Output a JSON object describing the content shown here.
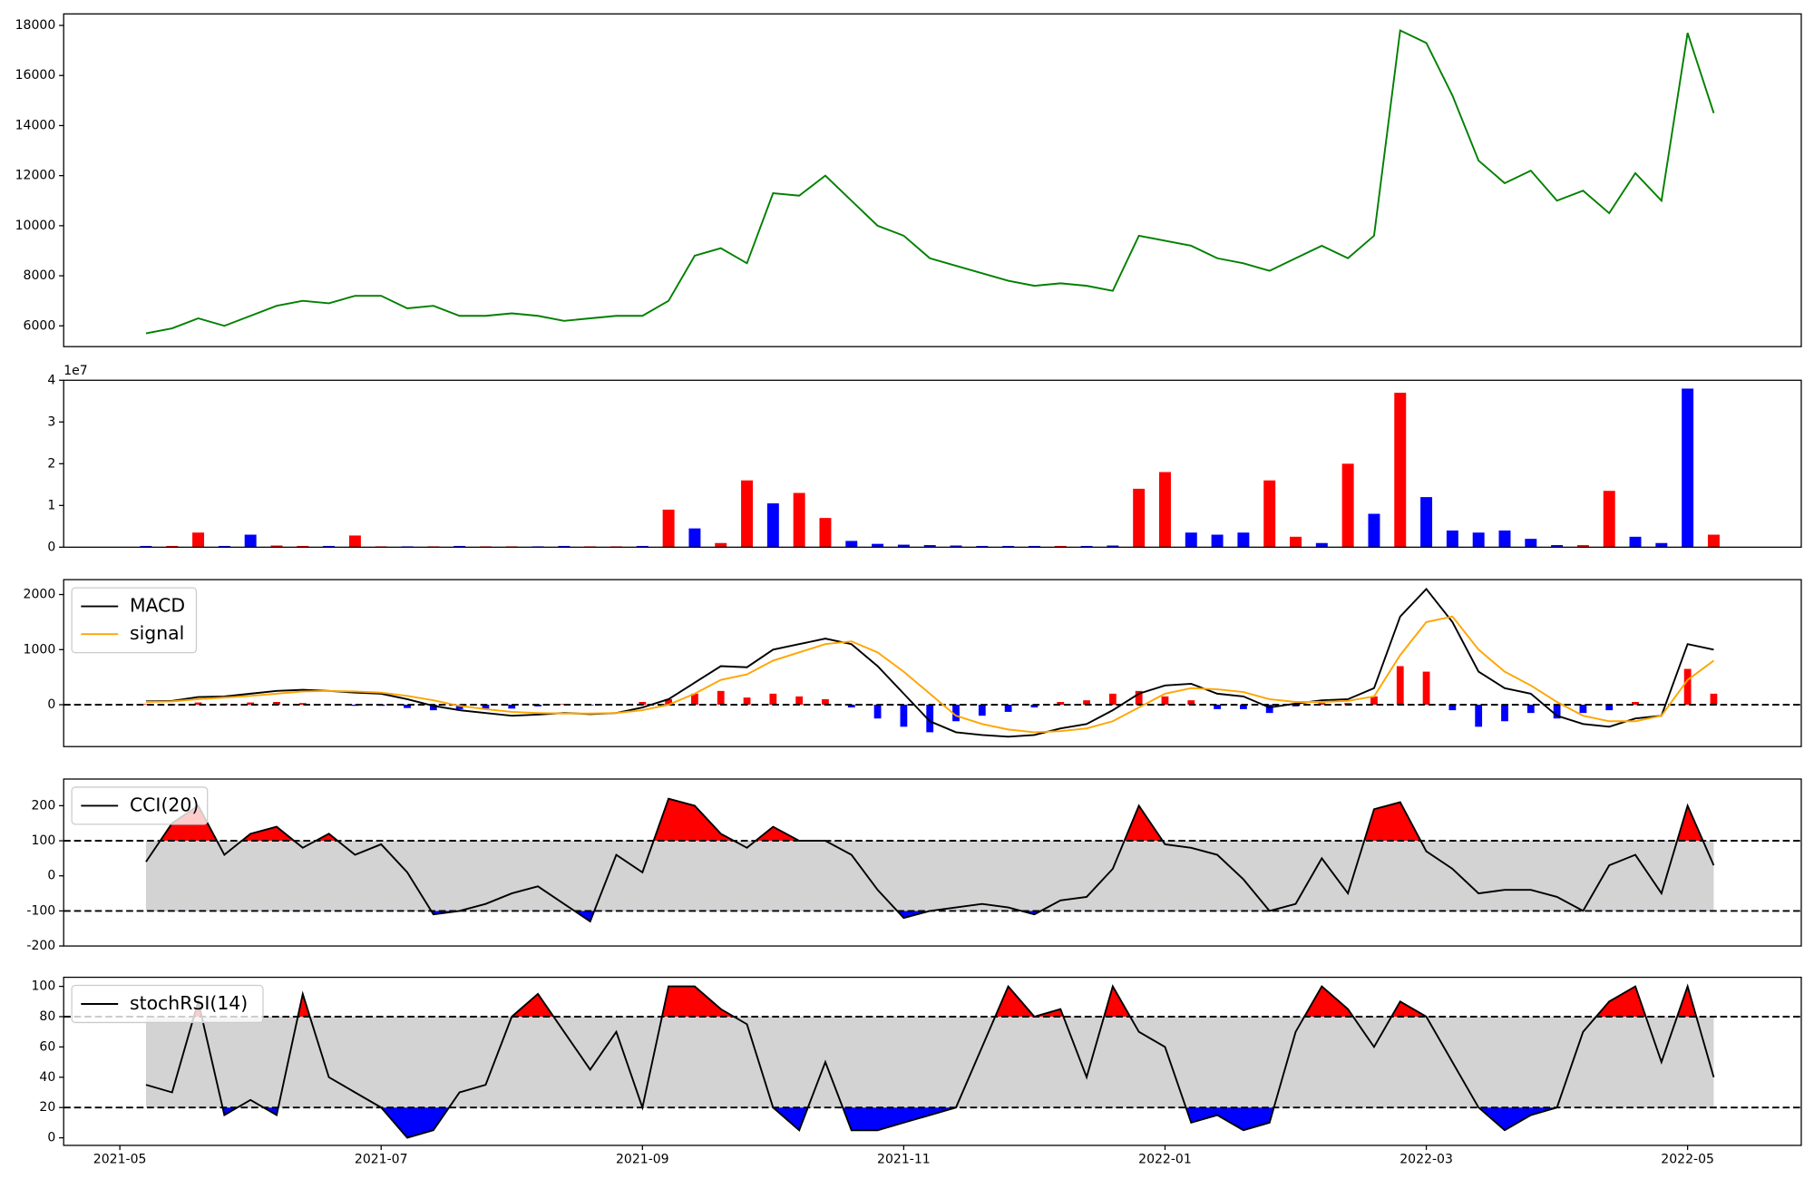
{
  "chart_data": {
    "type": "panels",
    "x": [
      5.2,
      5.4,
      5.6,
      5.8,
      6,
      6.2,
      6.4,
      6.6,
      6.8,
      7,
      7.2,
      7.4,
      7.6,
      7.8,
      8,
      8.2,
      8.4,
      8.6,
      8.8,
      9,
      9.2,
      9.4,
      9.6,
      9.8,
      10,
      10.2,
      10.4,
      10.6,
      10.8,
      11,
      11.2,
      11.4,
      11.6,
      11.8,
      12,
      12.2,
      12.4,
      12.6,
      12.8,
      13,
      13.2,
      13.4,
      13.6,
      13.8,
      14,
      14.2,
      14.4,
      14.6,
      14.8,
      15,
      15.2,
      15.4,
      15.6,
      15.8,
      16,
      16.2,
      16.4,
      16.6,
      16.8,
      17,
      17.2
    ],
    "xlim": [
      4.57,
      17.87
    ],
    "xticks": [
      {
        "value": 5,
        "label": "2021-05"
      },
      {
        "value": 7,
        "label": "2021-07"
      },
      {
        "value": 9,
        "label": "2021-09"
      },
      {
        "value": 11,
        "label": "2021-11"
      },
      {
        "value": 13,
        "label": "2022-01"
      },
      {
        "value": 15,
        "label": "2022-03"
      },
      {
        "value": 17,
        "label": "2022-05"
      }
    ],
    "panels": [
      {
        "type": "line",
        "ylim": [
          5170,
          18460
        ],
        "yticks": [
          6000,
          8000,
          10000,
          12000,
          14000,
          16000,
          18000
        ],
        "series": [
          {
            "color": "green",
            "values": [
              5700,
              5900,
              6300,
              6000,
              6400,
              6800,
              7000,
              6900,
              7200,
              7200,
              6700,
              6800,
              6400,
              6400,
              6500,
              6400,
              6200,
              6300,
              6400,
              6400,
              7000,
              8800,
              9100,
              8500,
              11300,
              11200,
              12000,
              11000,
              10000,
              9600,
              8700,
              8400,
              8100,
              7800,
              7600,
              7700,
              7600,
              7400,
              9600,
              9400,
              9200,
              8700,
              8500,
              8200,
              8700,
              9200,
              8700,
              9600,
              17800,
              17300,
              15200,
              12600,
              11700,
              12200,
              11000,
              11400,
              10500,
              12100,
              11000,
              17700,
              14500
            ]
          }
        ]
      },
      {
        "type": "bar",
        "ylim": [
          0,
          40000000
        ],
        "offset_text": "1e7",
        "yticks": [
          0,
          {
            "value": 10000000,
            "label": "1"
          },
          {
            "value": 20000000,
            "label": "2"
          },
          {
            "value": 30000000,
            "label": "3"
          },
          {
            "value": 40000000,
            "label": "4"
          }
        ],
        "values": [
          300000,
          300000,
          3500000,
          300000,
          3000000,
          400000,
          300000,
          300000,
          2800000,
          200000,
          200000,
          200000,
          300000,
          200000,
          200000,
          200000,
          300000,
          200000,
          200000,
          300000,
          9000000,
          4500000,
          1000000,
          16000000,
          10500000,
          13000000,
          7000000,
          1500000,
          800000,
          600000,
          500000,
          400000,
          300000,
          300000,
          300000,
          300000,
          300000,
          400000,
          14000000,
          18000000,
          3500000,
          3000000,
          3500000,
          16000000,
          2500000,
          1000000,
          20000000,
          8000000,
          37000000,
          12000000,
          4000000,
          3500000,
          4000000,
          2000000,
          500000,
          500000,
          13500000,
          2500000,
          1000000,
          38000000,
          3000000
        ],
        "colors": [
          "blue",
          "red",
          "red",
          "blue",
          "blue",
          "red",
          "red",
          "blue",
          "red",
          "red",
          "blue",
          "red",
          "blue",
          "red",
          "red",
          "blue",
          "blue",
          "red",
          "red",
          "blue",
          "red",
          "blue",
          "red",
          "red",
          "blue",
          "red",
          "red",
          "blue",
          "blue",
          "blue",
          "blue",
          "blue",
          "blue",
          "blue",
          "blue",
          "red",
          "blue",
          "blue",
          "red",
          "red",
          "blue",
          "blue",
          "blue",
          "red",
          "red",
          "blue",
          "red",
          "blue",
          "red",
          "blue",
          "blue",
          "blue",
          "blue",
          "blue",
          "blue",
          "red",
          "red",
          "blue",
          "blue",
          "blue",
          "red"
        ]
      },
      {
        "type": "line",
        "ylim": [
          -760,
          2270
        ],
        "yticks": [
          0,
          1000,
          2000
        ],
        "hlines": [
          0
        ],
        "legend": "upper left",
        "histogram": {
          "pos_color": "red",
          "neg_color": "blue",
          "values": [
            10,
            10,
            40,
            20,
            40,
            50,
            30,
            0,
            -20,
            -20,
            -60,
            -100,
            -80,
            -70,
            -70,
            -30,
            10,
            -10,
            0,
            50,
            100,
            200,
            250,
            130,
            200,
            150,
            100,
            -50,
            -250,
            -400,
            -500,
            -300,
            -200,
            -130,
            -50,
            50,
            80,
            200,
            250,
            150,
            80,
            -80,
            -80,
            -150,
            -30,
            30,
            30,
            150,
            700,
            600,
            -100,
            -400,
            -300,
            -150,
            -250,
            -150,
            -100,
            50,
            0,
            650,
            200
          ]
        },
        "series": [
          {
            "name": "MACD",
            "color": "black",
            "values": [
              60,
              70,
              140,
              150,
              200,
              250,
              270,
              250,
              220,
              200,
              100,
              -20,
              -100,
              -150,
              -200,
              -180,
              -150,
              -170,
              -150,
              -50,
              100,
              400,
              700,
              680,
              1000,
              1100,
              1200,
              1100,
              700,
              200,
              -300,
              -500,
              -550,
              -580,
              -550,
              -430,
              -350,
              -100,
              200,
              350,
              380,
              200,
              150,
              -50,
              20,
              80,
              100,
              300,
              1600,
              2100,
              1500,
              600,
              300,
              200,
              -200,
              -350,
              -400,
              -250,
              -200,
              1100,
              1000
            ]
          },
          {
            "name": "signal",
            "color": "orange",
            "values": [
              50,
              60,
              100,
              130,
              160,
              200,
              240,
              250,
              240,
              220,
              160,
              80,
              -20,
              -80,
              -130,
              -150,
              -160,
              -160,
              -150,
              -100,
              0,
              200,
              450,
              550,
              800,
              950,
              1100,
              1150,
              950,
              600,
              200,
              -200,
              -350,
              -450,
              -500,
              -480,
              -430,
              -300,
              -50,
              200,
              300,
              280,
              230,
              100,
              50,
              50,
              70,
              150,
              900,
              1500,
              1600,
              1000,
              600,
              350,
              50,
              -200,
              -300,
              -300,
              -200,
              450,
              800
            ]
          }
        ]
      },
      {
        "type": "line",
        "ylim": [
          -200,
          276
        ],
        "yticks": [
          -200,
          -100,
          0,
          100,
          200
        ],
        "legend": "upper left",
        "thresholds": [
          100,
          -100
        ],
        "band_color": "lightgray",
        "upper_color": "red",
        "lower_color": "blue",
        "series": [
          {
            "name": "CCI(20)",
            "color": "black",
            "values": [
              40,
              150,
              200,
              60,
              120,
              140,
              80,
              120,
              60,
              90,
              10,
              -110,
              -100,
              -80,
              -50,
              -30,
              -80,
              -130,
              60,
              10,
              220,
              200,
              120,
              80,
              140,
              100,
              100,
              60,
              -40,
              -120,
              -100,
              -90,
              -80,
              -90,
              -110,
              -70,
              -60,
              20,
              200,
              90,
              80,
              60,
              -10,
              -100,
              -80,
              50,
              -50,
              190,
              210,
              70,
              20,
              -50,
              -40,
              -40,
              -60,
              -100,
              30,
              60,
              -50,
              200,
              30
            ]
          }
        ]
      },
      {
        "type": "line",
        "ylim": [
          -5,
          106
        ],
        "yticks": [
          0,
          20,
          40,
          60,
          80,
          100
        ],
        "legend": "upper left",
        "thresholds": [
          80,
          20
        ],
        "band_color": "lightgray",
        "upper_color": "red",
        "lower_color": "blue",
        "series": [
          {
            "name": "stochRSI(14)",
            "color": "black",
            "values": [
              35,
              30,
              90,
              15,
              25,
              15,
              95,
              40,
              30,
              20,
              0,
              5,
              30,
              35,
              80,
              95,
              70,
              45,
              70,
              20,
              100,
              100,
              85,
              75,
              20,
              5,
              50,
              5,
              5,
              10,
              15,
              20,
              60,
              100,
              80,
              85,
              40,
              100,
              70,
              60,
              10,
              15,
              5,
              10,
              70,
              100,
              85,
              60,
              90,
              80,
              50,
              20,
              5,
              15,
              20,
              70,
              90,
              100,
              50,
              100,
              40
            ]
          }
        ]
      }
    ]
  }
}
